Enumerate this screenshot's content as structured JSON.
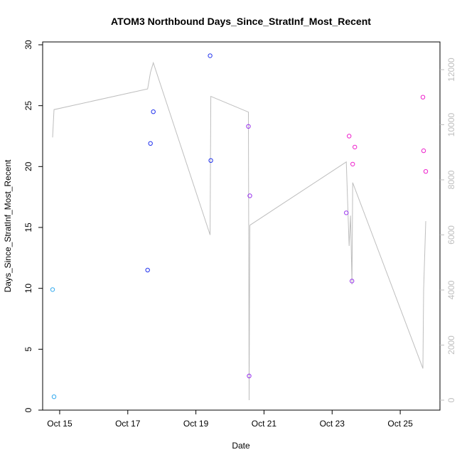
{
  "chart_data": {
    "type": "scatter",
    "title": "ATOM3 Northbound Days_Since_StratInf_Most_Recent",
    "xlabel": "Date",
    "ylabel": "Days_Since_StratInf_Most_Recent",
    "x_ticks": [
      "Oct 15",
      "Oct 17",
      "Oct 19",
      "Oct 21",
      "Oct 23",
      "Oct 25"
    ],
    "y_ticks": [
      0,
      5,
      10,
      15,
      20,
      25,
      30
    ],
    "y2_ticks": [
      0,
      2000,
      4000,
      6000,
      8000,
      10000,
      12000
    ],
    "ylim": [
      0,
      30
    ],
    "y2lim": [
      0,
      12000
    ],
    "xlim": [
      "2016-10-14T12:00",
      "2016-10-26T04:00"
    ],
    "colors": {
      "cyan": "#33aaee",
      "blue": "#2233ee",
      "purple": "#9933ee",
      "magenta": "#ee22cc",
      "line": "#bebebe"
    },
    "points": [
      {
        "x": "2016-10-14T19:00",
        "y": 9.9,
        "color": "cyan"
      },
      {
        "x": "2016-10-14T20:00",
        "y": 1.1,
        "color": "cyan"
      },
      {
        "x": "2016-10-17T14:00",
        "y": 11.5,
        "color": "blue"
      },
      {
        "x": "2016-10-17T16:00",
        "y": 21.9,
        "color": "blue"
      },
      {
        "x": "2016-10-17T18:00",
        "y": 24.5,
        "color": "blue"
      },
      {
        "x": "2016-10-19T10:00",
        "y": 29.1,
        "color": "blue"
      },
      {
        "x": "2016-10-19T10:30",
        "y": 20.5,
        "color": "blue"
      },
      {
        "x": "2016-10-20T13:00",
        "y": 23.3,
        "color": "purple"
      },
      {
        "x": "2016-10-20T13:30",
        "y": 2.8,
        "color": "purple"
      },
      {
        "x": "2016-10-20T14:00",
        "y": 17.6,
        "color": "purple"
      },
      {
        "x": "2016-10-23T10:00",
        "y": 16.2,
        "color": "purple"
      },
      {
        "x": "2016-10-23T12:00",
        "y": 22.5,
        "color": "magenta"
      },
      {
        "x": "2016-10-23T14:00",
        "y": 10.6,
        "color": "purple"
      },
      {
        "x": "2016-10-23T14:30",
        "y": 20.2,
        "color": "magenta"
      },
      {
        "x": "2016-10-23T16:00",
        "y": 21.6,
        "color": "magenta"
      },
      {
        "x": "2016-10-25T16:00",
        "y": 25.7,
        "color": "magenta"
      },
      {
        "x": "2016-10-25T16:30",
        "y": 21.3,
        "color": "magenta"
      },
      {
        "x": "2016-10-25T18:00",
        "y": 19.6,
        "color": "magenta"
      }
    ],
    "line_series": [
      {
        "x": "2016-10-14T19:00",
        "y": 9540
      },
      {
        "x": "2016-10-14T20:00",
        "y": 10550
      },
      {
        "x": "2016-10-17T14:00",
        "y": 11300
      },
      {
        "x": "2016-10-17T16:00",
        "y": 11900
      },
      {
        "x": "2016-10-17T18:00",
        "y": 12250
      },
      {
        "x": "2016-10-19T10:00",
        "y": 6000
      },
      {
        "x": "2016-10-19T10:30",
        "y": 11030
      },
      {
        "x": "2016-10-20T13:00",
        "y": 10460
      },
      {
        "x": "2016-10-20T13:30",
        "y": 0
      },
      {
        "x": "2016-10-20T14:00",
        "y": 6350
      },
      {
        "x": "2016-10-23T10:00",
        "y": 8650
      },
      {
        "x": "2016-10-23T12:00",
        "y": 5600
      },
      {
        "x": "2016-10-23T13:00",
        "y": 6700
      },
      {
        "x": "2016-10-23T14:00",
        "y": 4200
      },
      {
        "x": "2016-10-23T14:30",
        "y": 7900
      },
      {
        "x": "2016-10-25T16:00",
        "y": 1150
      },
      {
        "x": "2016-10-25T16:30",
        "y": 4000
      },
      {
        "x": "2016-10-25T18:00",
        "y": 6500
      }
    ]
  }
}
